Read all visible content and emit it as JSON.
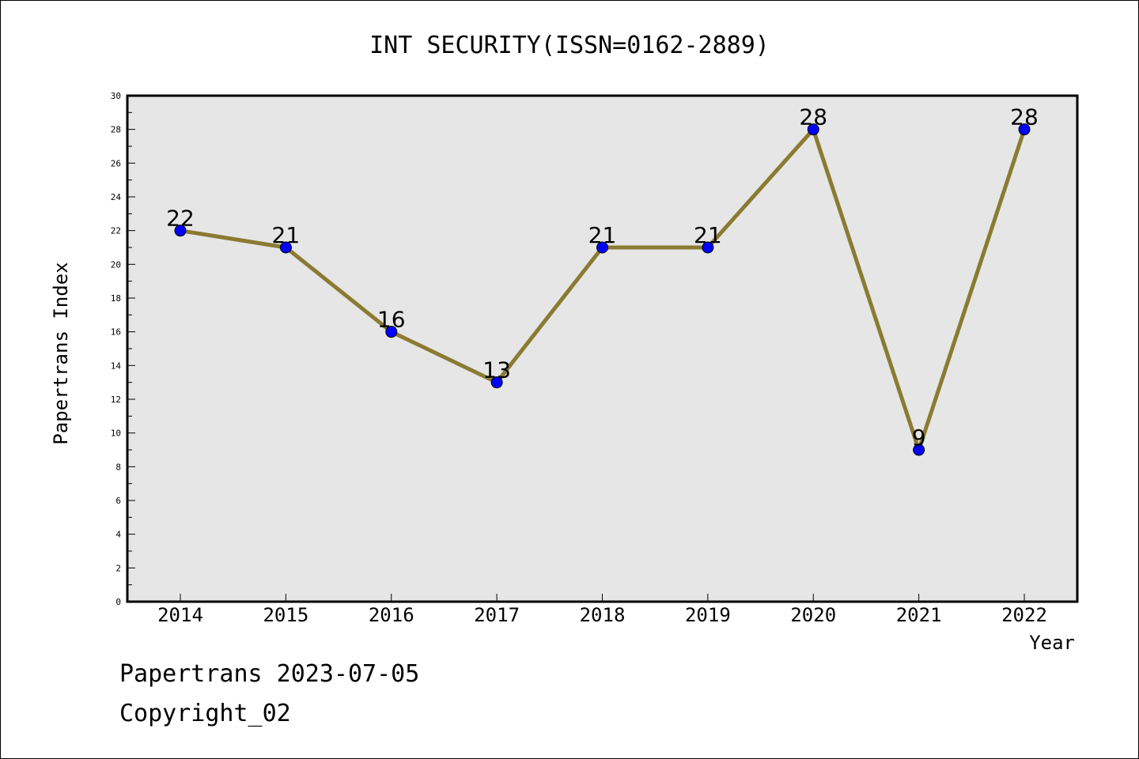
{
  "chart_data": {
    "type": "line",
    "title": "INT SECURITY(ISSN=0162-2889)",
    "xlabel": "Year",
    "ylabel": "Papertrans Index",
    "categories": [
      "2014",
      "2015",
      "2016",
      "2017",
      "2018",
      "2019",
      "2020",
      "2021",
      "2022"
    ],
    "values": [
      22,
      21,
      16,
      13,
      21,
      21,
      28,
      9,
      28
    ],
    "data_labels": [
      "22",
      "21",
      "16",
      "13",
      "21",
      "21",
      "28",
      "9",
      "28"
    ],
    "ylim": [
      0,
      30
    ],
    "yticks": [
      "0",
      "2",
      "4",
      "6",
      "8",
      "10",
      "12",
      "14",
      "16",
      "18",
      "20",
      "22",
      "24",
      "26",
      "28",
      "30"
    ],
    "grid": false,
    "colors": {
      "line": "#8B7A32",
      "marker": "#0000FF",
      "plot_background": "#E6E6E6",
      "axis": "#000000"
    }
  },
  "footer": {
    "date_line": "Papertrans 2023-07-05",
    "copyright_line": "Copyright_02"
  }
}
